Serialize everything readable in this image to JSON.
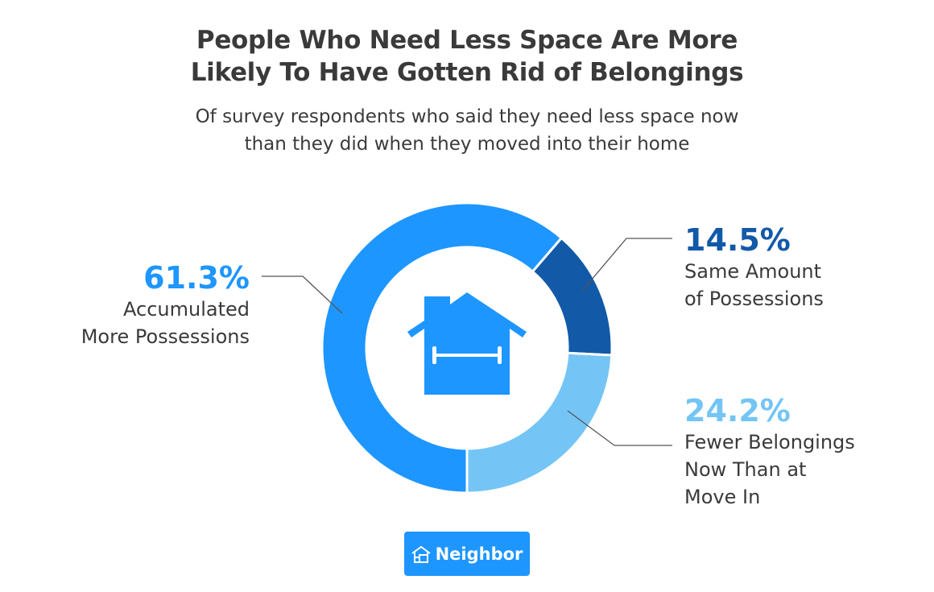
{
  "chart_data": {
    "type": "pie",
    "title": "People Who Need Less Space Are More Likely To Have Gotten Rid of Belongings",
    "subtitle": "Of survey respondents who said they need less space now than they did when they moved into their home",
    "slices": [
      {
        "label": "Accumulated More Possessions",
        "value": 61.3,
        "display": "61.3%",
        "color": "#1e96ff"
      },
      {
        "label": "Same Amount of Possessions",
        "value": 14.5,
        "display": "14.5%",
        "color": "#1259a8"
      },
      {
        "label": "Fewer Belongings Now Than at Move In",
        "value": 24.2,
        "display": "24.2%",
        "color": "#74c5f5"
      }
    ],
    "donut": true,
    "center_icon": "house-icon"
  },
  "title_lines": [
    "People Who Need Less Space Are More",
    "Likely To Have Gotten Rid of Belongings"
  ],
  "subtitle_lines": [
    "Of survey respondents who said they need less space now",
    "than they did when they moved into their home"
  ],
  "labels": {
    "a": [
      "Accumulated",
      "More Possessions"
    ],
    "b": [
      "Same Amount",
      "of Possessions"
    ],
    "c": [
      "Fewer Belongings",
      "Now Than at",
      "Move In"
    ]
  },
  "logo": {
    "text": "Neighbor",
    "icon": "neighbor-house-icon"
  }
}
